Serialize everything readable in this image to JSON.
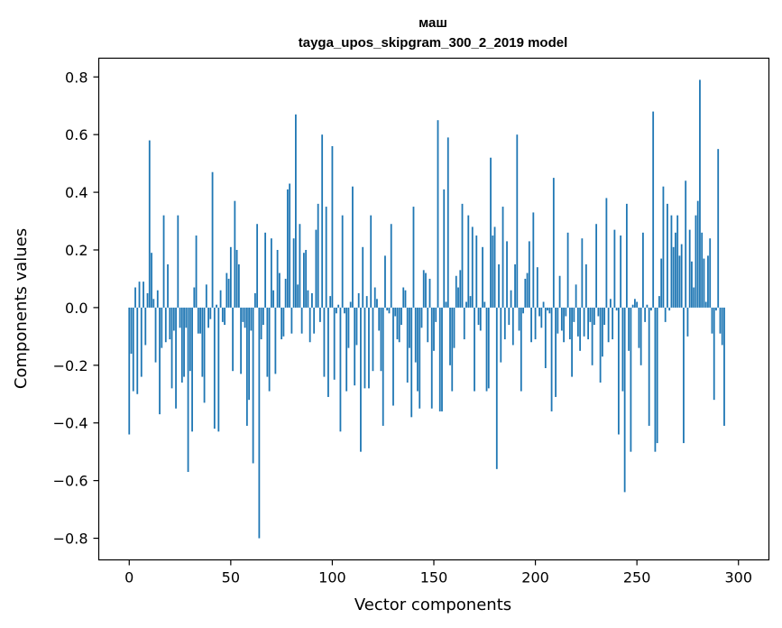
{
  "chart_data": {
    "type": "bar",
    "title": "маш",
    "subtitle": "tayga_upos_skipgram_300_2_2019 model",
    "xlabel": "Vector components",
    "ylabel": "Components values",
    "xlim": [
      -15,
      315
    ],
    "ylim": [
      -0.875,
      0.865
    ],
    "xticks": [
      0,
      50,
      100,
      150,
      200,
      250,
      300
    ],
    "xtick_labels": [
      "0",
      "50",
      "100",
      "150",
      "200",
      "250",
      "300"
    ],
    "yticks": [
      0.8,
      0.6,
      0.4,
      0.2,
      0.0,
      -0.2,
      -0.4,
      -0.6,
      -0.8
    ],
    "ytick_labels": [
      "0.8",
      "0.6",
      "0.4",
      "0.2",
      "0.0",
      "−0.2",
      "−0.4",
      "−0.6",
      "−0.8"
    ],
    "bar_color": "#1f77b4",
    "grid": false,
    "x_start": 0,
    "values": [
      -0.44,
      -0.16,
      -0.29,
      0.07,
      -0.3,
      0.09,
      -0.24,
      0.09,
      -0.13,
      0.05,
      0.58,
      0.19,
      0.03,
      -0.19,
      0.06,
      -0.37,
      -0.14,
      0.32,
      -0.12,
      0.15,
      -0.11,
      -0.28,
      -0.08,
      -0.35,
      0.32,
      -0.07,
      -0.26,
      -0.24,
      -0.07,
      -0.57,
      -0.22,
      -0.43,
      0.07,
      0.25,
      -0.09,
      -0.09,
      -0.24,
      -0.33,
      0.08,
      -0.07,
      -0.04,
      0.47,
      -0.42,
      0.01,
      -0.43,
      0.06,
      -0.05,
      -0.06,
      0.12,
      0.1,
      0.21,
      -0.22,
      0.37,
      0.2,
      0.15,
      -0.23,
      -0.05,
      -0.07,
      -0.41,
      -0.32,
      -0.08,
      -0.54,
      0.05,
      0.29,
      -0.8,
      -0.11,
      -0.06,
      0.26,
      -0.24,
      -0.29,
      0.24,
      0.06,
      -0.23,
      0.2,
      0.12,
      -0.11,
      -0.1,
      0.1,
      0.41,
      0.43,
      -0.09,
      0.24,
      0.67,
      0.08,
      0.29,
      -0.09,
      0.19,
      0.2,
      0.06,
      -0.12,
      0.05,
      -0.09,
      0.27,
      0.36,
      -0.05,
      0.6,
      -0.24,
      0.35,
      -0.31,
      0.04,
      0.56,
      -0.25,
      -0.02,
      0.01,
      -0.43,
      0.32,
      -0.02,
      -0.29,
      -0.14,
      0.02,
      0.42,
      -0.27,
      -0.13,
      0.05,
      -0.5,
      0.21,
      -0.28,
      0.04,
      -0.28,
      0.32,
      -0.22,
      0.07,
      0.03,
      -0.08,
      -0.22,
      -0.41,
      0.18,
      -0.01,
      -0.02,
      0.29,
      -0.34,
      -0.03,
      -0.11,
      -0.12,
      -0.06,
      0.07,
      0.06,
      -0.26,
      -0.14,
      -0.38,
      0.35,
      -0.19,
      -0.29,
      -0.35,
      -0.07,
      0.13,
      0.12,
      -0.12,
      0.1,
      -0.35,
      -0.15,
      -0.05,
      0.65,
      -0.36,
      -0.36,
      0.41,
      0.02,
      0.59,
      -0.2,
      -0.29,
      -0.14,
      0.11,
      0.07,
      0.13,
      0.36,
      -0.11,
      0.02,
      0.32,
      0.04,
      0.28,
      -0.29,
      0.25,
      -0.06,
      -0.08,
      0.21,
      0.02,
      -0.29,
      -0.28,
      0.52,
      0.25,
      0.28,
      -0.56,
      0.15,
      -0.19,
      0.35,
      -0.11,
      0.23,
      -0.06,
      0.06,
      -0.13,
      0.15,
      0.6,
      -0.08,
      -0.29,
      -0.02,
      0.1,
      0.12,
      0.23,
      -0.12,
      0.33,
      -0.11,
      0.14,
      -0.03,
      -0.07,
      0.02,
      -0.21,
      -0.01,
      -0.02,
      -0.36,
      0.45,
      -0.31,
      -0.09,
      0.11,
      -0.08,
      -0.12,
      -0.03,
      0.26,
      -0.11,
      -0.24,
      -0.05,
      0.08,
      -0.1,
      -0.15,
      0.24,
      -0.1,
      0.15,
      -0.11,
      -0.05,
      -0.2,
      -0.06,
      0.29,
      -0.03,
      -0.26,
      -0.17,
      -0.06,
      0.38,
      -0.12,
      0.03,
      -0.11,
      0.27,
      -0.01,
      -0.44,
      0.25,
      -0.29,
      -0.64,
      0.36,
      -0.15,
      -0.5,
      0.01,
      0.03,
      0.02,
      -0.14,
      -0.2,
      0.26,
      -0.05,
      0.01,
      -0.41,
      -0.01,
      0.68,
      -0.5,
      -0.47,
      0.04,
      0.17,
      0.42,
      -0.05,
      0.36,
      -0.01,
      0.32,
      0.21,
      0.26,
      0.32,
      0.18,
      0.22,
      -0.47,
      0.44,
      -0.1,
      0.27,
      0.16,
      0.07,
      0.32,
      0.37,
      0.79,
      0.26,
      0.17,
      0.02,
      0.18,
      0.24,
      -0.09,
      -0.32,
      -0.01,
      0.55,
      -0.09,
      -0.13,
      -0.41
    ]
  }
}
